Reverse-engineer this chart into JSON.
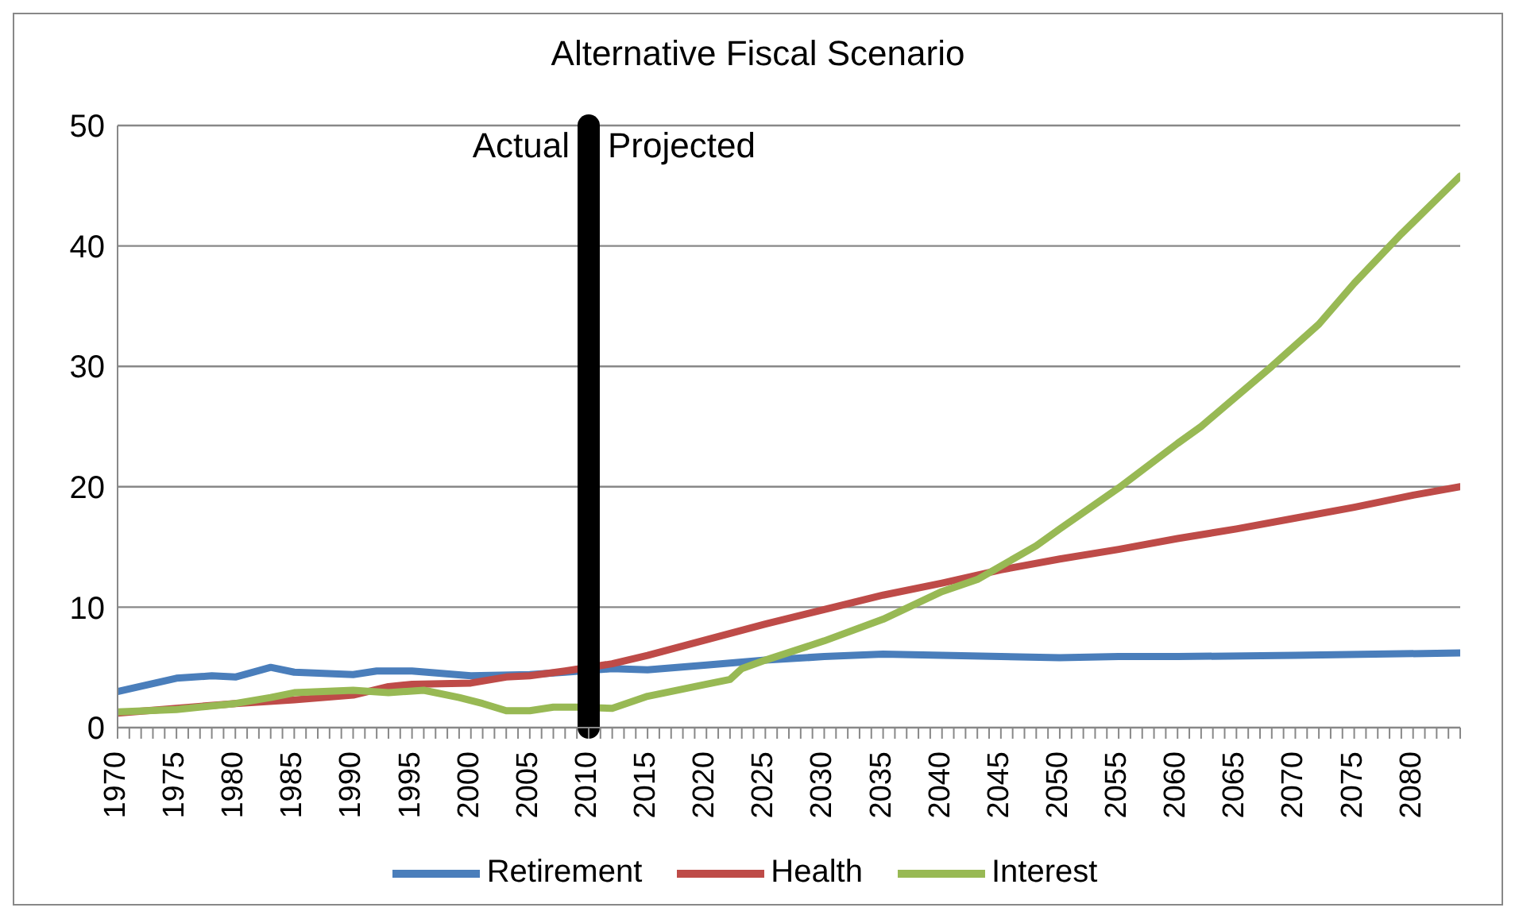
{
  "chart_data": {
    "type": "line",
    "title": "Alternative Fiscal Scenario",
    "xlim": [
      1970,
      2084
    ],
    "xticks": [
      1970,
      {
        "value": 1971,
        "label": null
      },
      {
        "value": 1972,
        "label": null
      },
      {
        "value": 1973,
        "label": null
      },
      {
        "value": 1974,
        "label": null
      },
      1975,
      {
        "value": 1976,
        "label": null
      },
      {
        "value": 1977,
        "label": null
      },
      {
        "value": 1978,
        "label": null
      },
      {
        "value": 1979,
        "label": null
      },
      1980,
      {
        "value": 1981,
        "label": null
      },
      {
        "value": 1982,
        "label": null
      },
      {
        "value": 1983,
        "label": null
      },
      {
        "value": 1984,
        "label": null
      },
      1985,
      {
        "value": 1986,
        "label": null
      },
      {
        "value": 1987,
        "label": null
      },
      {
        "value": 1988,
        "label": null
      },
      {
        "value": 1989,
        "label": null
      },
      1990,
      {
        "value": 1991,
        "label": null
      },
      {
        "value": 1992,
        "label": null
      },
      {
        "value": 1993,
        "label": null
      },
      {
        "value": 1994,
        "label": null
      },
      1995,
      {
        "value": 1996,
        "label": null
      },
      {
        "value": 1997,
        "label": null
      },
      {
        "value": 1998,
        "label": null
      },
      {
        "value": 1999,
        "label": null
      },
      2000,
      {
        "value": 2001,
        "label": null
      },
      {
        "value": 2002,
        "label": null
      },
      {
        "value": 2003,
        "label": null
      },
      {
        "value": 2004,
        "label": null
      },
      2005,
      {
        "value": 2006,
        "label": null
      },
      {
        "value": 2007,
        "label": null
      },
      {
        "value": 2008,
        "label": null
      },
      {
        "value": 2009,
        "label": null
      },
      2010,
      {
        "value": 2011,
        "label": null
      },
      {
        "value": 2012,
        "label": null
      },
      {
        "value": 2013,
        "label": null
      },
      {
        "value": 2014,
        "label": null
      },
      2015,
      {
        "value": 2016,
        "label": null
      },
      {
        "value": 2017,
        "label": null
      },
      {
        "value": 2018,
        "label": null
      },
      {
        "value": 2019,
        "label": null
      },
      2020,
      {
        "value": 2021,
        "label": null
      },
      {
        "value": 2022,
        "label": null
      },
      {
        "value": 2023,
        "label": null
      },
      {
        "value": 2024,
        "label": null
      },
      2025,
      {
        "value": 2026,
        "label": null
      },
      {
        "value": 2027,
        "label": null
      },
      {
        "value": 2028,
        "label": null
      },
      {
        "value": 2029,
        "label": null
      },
      2030,
      {
        "value": 2031,
        "label": null
      },
      {
        "value": 2032,
        "label": null
      },
      {
        "value": 2033,
        "label": null
      },
      {
        "value": 2034,
        "label": null
      },
      2035,
      {
        "value": 2036,
        "label": null
      },
      {
        "value": 2037,
        "label": null
      },
      {
        "value": 2038,
        "label": null
      },
      {
        "value": 2039,
        "label": null
      },
      2040,
      {
        "value": 2041,
        "label": null
      },
      {
        "value": 2042,
        "label": null
      },
      {
        "value": 2043,
        "label": null
      },
      {
        "value": 2044,
        "label": null
      },
      2045,
      {
        "value": 2046,
        "label": null
      },
      {
        "value": 2047,
        "label": null
      },
      {
        "value": 2048,
        "label": null
      },
      {
        "value": 2049,
        "label": null
      },
      2050,
      {
        "value": 2051,
        "label": null
      },
      {
        "value": 2052,
        "label": null
      },
      {
        "value": 2053,
        "label": null
      },
      {
        "value": 2054,
        "label": null
      },
      2055,
      {
        "value": 2056,
        "label": null
      },
      {
        "value": 2057,
        "label": null
      },
      {
        "value": 2058,
        "label": null
      },
      {
        "value": 2059,
        "label": null
      },
      2060,
      {
        "value": 2061,
        "label": null
      },
      {
        "value": 2062,
        "label": null
      },
      {
        "value": 2063,
        "label": null
      },
      {
        "value": 2064,
        "label": null
      },
      2065,
      {
        "value": 2066,
        "label": null
      },
      {
        "value": 2067,
        "label": null
      },
      {
        "value": 2068,
        "label": null
      },
      {
        "value": 2069,
        "label": null
      },
      2070,
      {
        "value": 2071,
        "label": null
      },
      {
        "value": 2072,
        "label": null
      },
      {
        "value": 2073,
        "label": null
      },
      {
        "value": 2074,
        "label": null
      },
      2075,
      {
        "value": 2076,
        "label": null
      },
      {
        "value": 2077,
        "label": null
      },
      {
        "value": 2078,
        "label": null
      },
      {
        "value": 2079,
        "label": null
      },
      2080,
      {
        "value": 2081,
        "label": null
      },
      {
        "value": 2082,
        "label": null
      },
      {
        "value": 2083,
        "label": null
      },
      {
        "value": 2084,
        "label": null
      }
    ],
    "ylim": [
      0,
      50
    ],
    "yticks": [
      0,
      10,
      20,
      30,
      40,
      50
    ],
    "grid": "y",
    "legend": "bottom",
    "marker": "none",
    "line_style": "solid",
    "series": [
      {
        "name": "Retirement",
        "color": "#4a7ebb",
        "x": [
          1970,
          1975,
          1978,
          1980,
          1983,
          1985,
          1990,
          1992,
          1995,
          2000,
          2005,
          2008,
          2012,
          2015,
          2020,
          2025,
          2030,
          2035,
          2040,
          2045,
          2050,
          2055,
          2060,
          2070,
          2084
        ],
        "values": [
          3.0,
          4.1,
          4.3,
          4.2,
          5.0,
          4.6,
          4.4,
          4.7,
          4.7,
          4.3,
          4.4,
          4.6,
          4.9,
          4.8,
          5.2,
          5.6,
          5.9,
          6.1,
          6.0,
          5.9,
          5.8,
          5.9,
          5.9,
          6.0,
          6.2
        ]
      },
      {
        "name": "Health",
        "color": "#be4b48",
        "x": [
          1970,
          1975,
          1980,
          1985,
          1990,
          1993,
          1995,
          2000,
          2003,
          2005,
          2008,
          2012,
          2015,
          2020,
          2025,
          2030,
          2035,
          2040,
          2045,
          2050,
          2055,
          2060,
          2065,
          2070,
          2075,
          2080,
          2084
        ],
        "values": [
          1.2,
          1.6,
          2.0,
          2.3,
          2.7,
          3.4,
          3.6,
          3.7,
          4.2,
          4.3,
          4.7,
          5.3,
          6.0,
          7.3,
          8.6,
          9.8,
          11.0,
          12.0,
          13.1,
          14.0,
          14.8,
          15.7,
          16.5,
          17.4,
          18.3,
          19.3,
          20.0
        ]
      },
      {
        "name": "Interest",
        "color": "#98b954",
        "x": [
          1970,
          1975,
          1980,
          1983,
          1985,
          1990,
          1993,
          1996,
          1999,
          2001,
          2003,
          2005,
          2007,
          2009,
          2012,
          2015,
          2020,
          2022,
          2023,
          2025,
          2030,
          2035,
          2040,
          2043,
          2048,
          2050,
          2055,
          2060,
          2062,
          2068,
          2072,
          2075,
          2079,
          2084
        ],
        "values": [
          1.3,
          1.5,
          2.0,
          2.5,
          2.9,
          3.1,
          2.9,
          3.1,
          2.5,
          2.0,
          1.4,
          1.4,
          1.7,
          1.7,
          1.6,
          2.6,
          3.6,
          4.0,
          4.9,
          5.6,
          7.2,
          9.0,
          11.3,
          12.3,
          15.1,
          16.5,
          19.9,
          23.6,
          25.0,
          30.0,
          33.5,
          36.9,
          41.0,
          45.8
        ]
      }
    ],
    "ref_lines": [
      {
        "axis": "x",
        "value": 2010,
        "color": "#000000"
      }
    ],
    "annotations": [
      "Actual",
      "Projected"
    ]
  }
}
